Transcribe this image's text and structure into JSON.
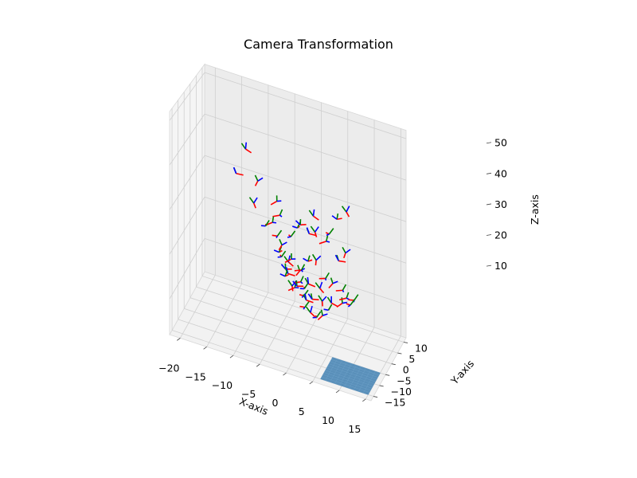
{
  "chart_data": {
    "type": "scatter3d",
    "title": "Camera Transformation",
    "xlabel": "X-axis",
    "ylabel": "Y-axis",
    "zlabel": "Z-axis",
    "xlim": [
      -22,
      16
    ],
    "ylim": [
      -17,
      12
    ],
    "zlim": [
      2,
      52
    ],
    "xticks": [
      -20,
      -15,
      -10,
      -5,
      0,
      5,
      10,
      15
    ],
    "yticks": [
      -15,
      -10,
      -5,
      0,
      5,
      10
    ],
    "zticks": [
      10,
      20,
      30,
      40,
      50
    ],
    "grid": true,
    "axis_colors": {
      "x": "#ff0000",
      "y": "#008000",
      "z": "#0000ff"
    },
    "plane": {
      "x": [
        6,
        15
      ],
      "y": [
        -15,
        -5
      ],
      "z": 2,
      "color": "#3f7fb0"
    },
    "cameras": [
      {
        "x": -14,
        "y": 3,
        "z": 33
      },
      {
        "x": -12,
        "y": 2,
        "z": 40
      },
      {
        "x": -10,
        "y": 0,
        "z": 29
      },
      {
        "x": -9,
        "y": -1,
        "z": 35
      },
      {
        "x": -7,
        "y": 6,
        "z": 28
      },
      {
        "x": -6,
        "y": 4,
        "z": 26
      },
      {
        "x": -6,
        "y": 2,
        "z": 22
      },
      {
        "x": -5,
        "y": 1,
        "z": 18
      },
      {
        "x": -5,
        "y": -1,
        "z": 20
      },
      {
        "x": -4,
        "y": 0,
        "z": 16
      },
      {
        "x": -4,
        "y": 2,
        "z": 14
      },
      {
        "x": -3,
        "y": -2,
        "z": 19
      },
      {
        "x": -3,
        "y": 1,
        "z": 12
      },
      {
        "x": -2,
        "y": 3,
        "z": 15
      },
      {
        "x": -2,
        "y": -1,
        "z": 13
      },
      {
        "x": -1,
        "y": 0,
        "z": 17
      },
      {
        "x": -1,
        "y": 2,
        "z": 10
      },
      {
        "x": 0,
        "y": -2,
        "z": 14
      },
      {
        "x": 0,
        "y": 1,
        "z": 19
      },
      {
        "x": 1,
        "y": 0,
        "z": 11
      },
      {
        "x": 1,
        "y": -3,
        "z": 16
      },
      {
        "x": 2,
        "y": 2,
        "z": 13
      },
      {
        "x": 2,
        "y": -1,
        "z": 21
      },
      {
        "x": 3,
        "y": 0,
        "z": 8
      },
      {
        "x": 3,
        "y": 3,
        "z": 24
      },
      {
        "x": 4,
        "y": -2,
        "z": 18
      },
      {
        "x": 4,
        "y": 1,
        "z": 27
      },
      {
        "x": 5,
        "y": -4,
        "z": 12
      },
      {
        "x": 5,
        "y": 3,
        "z": 30
      },
      {
        "x": 6,
        "y": 0,
        "z": 22
      },
      {
        "x": 6,
        "y": -6,
        "z": 15
      },
      {
        "x": 7,
        "y": 2,
        "z": 33
      },
      {
        "x": 8,
        "y": -3,
        "z": 26
      },
      {
        "x": 9,
        "y": -10,
        "z": 18
      },
      {
        "x": 10,
        "y": -11,
        "z": 20
      },
      {
        "x": 11,
        "y": -9,
        "z": 19
      },
      {
        "x": -3,
        "y": 0,
        "z": 24
      },
      {
        "x": -2,
        "y": 1,
        "z": 26
      },
      {
        "x": -1,
        "y": -1,
        "z": 28
      },
      {
        "x": 0,
        "y": 2,
        "z": 25
      },
      {
        "x": 1,
        "y": 1,
        "z": 30
      },
      {
        "x": 2,
        "y": -2,
        "z": 28
      },
      {
        "x": -4,
        "y": -3,
        "z": 23
      },
      {
        "x": -2,
        "y": -4,
        "z": 21
      },
      {
        "x": 0,
        "y": -5,
        "z": 17
      },
      {
        "x": 1,
        "y": -6,
        "z": 12
      },
      {
        "x": 3,
        "y": -5,
        "z": 10
      },
      {
        "x": -5,
        "y": 4,
        "z": 12
      },
      {
        "x": -3,
        "y": 5,
        "z": 10
      },
      {
        "x": -1,
        "y": 4,
        "z": 8
      },
      {
        "x": 0,
        "y": 3,
        "z": 6
      },
      {
        "x": 2,
        "y": 4,
        "z": 9
      },
      {
        "x": 4,
        "y": 4,
        "z": 14
      },
      {
        "x": -6,
        "y": -2,
        "z": 27
      },
      {
        "x": 7,
        "y": -1,
        "z": 16
      },
      {
        "x": 8,
        "y": 1,
        "z": 12
      },
      {
        "x": -8,
        "y": 1,
        "z": 24
      }
    ]
  }
}
